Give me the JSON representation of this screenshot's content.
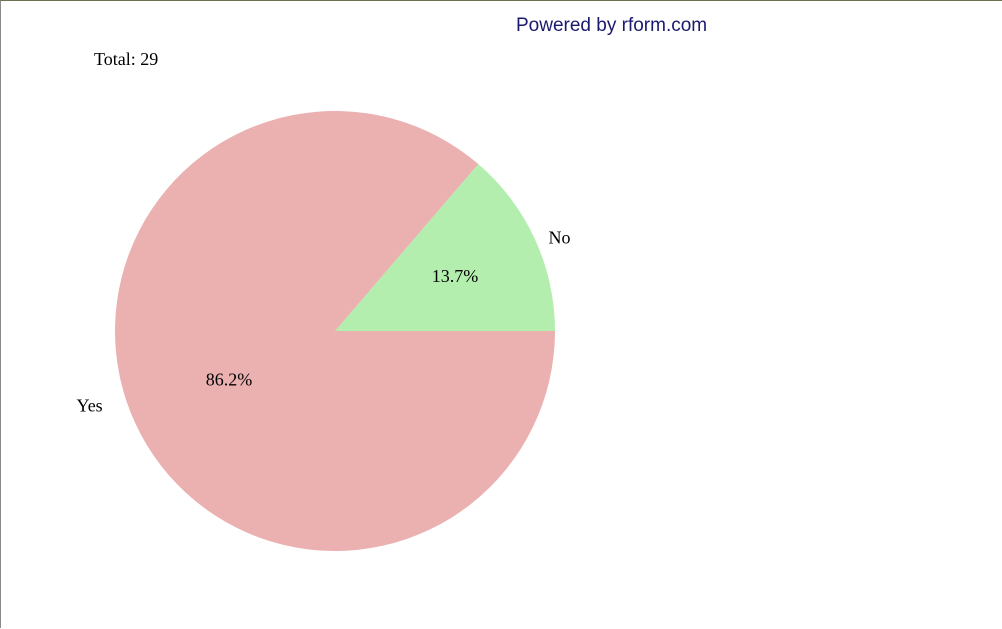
{
  "header": {
    "powered_by": "Powered by rform.com",
    "total": "Total: 29"
  },
  "chart_data": {
    "type": "pie",
    "title": "",
    "slices": [
      {
        "label": "Yes",
        "value": 86.2,
        "value_label": "86.2%",
        "color": "#ebb0b0"
      },
      {
        "label": "No",
        "value": 13.7,
        "value_label": "13.7%",
        "color": "#b3eeaf"
      }
    ],
    "colors": {
      "yes": "#ebb0b0",
      "no": "#b3eeaf",
      "powered_text": "#1a1a6e"
    }
  }
}
